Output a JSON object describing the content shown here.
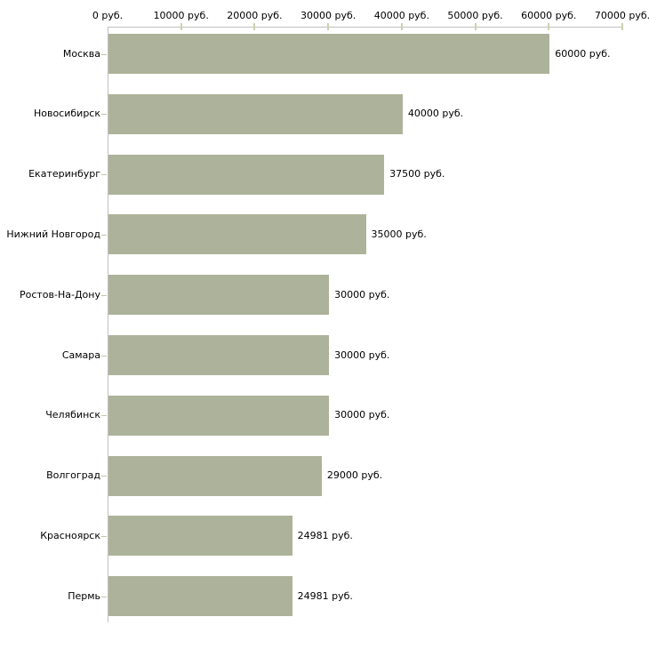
{
  "chart_data": {
    "type": "bar",
    "orientation": "horizontal",
    "title": "",
    "xlabel": "",
    "ylabel": "",
    "categories": [
      "Москва",
      "Новосибирск",
      "Екатеринбург",
      "Нижний Новгород",
      "Ростов-На-Дону",
      "Самара",
      "Челябинск",
      "Волгоград",
      "Красноярск",
      "Пермь"
    ],
    "values": [
      60000,
      40000,
      37500,
      35000,
      30000,
      30000,
      30000,
      29000,
      24981,
      24981
    ],
    "value_labels": [
      "60000 руб.",
      "40000 руб.",
      "37500 руб.",
      "35000 руб.",
      "30000 руб.",
      "30000 руб.",
      "30000 руб.",
      "29000 руб.",
      "24981 руб.",
      "24981 руб."
    ],
    "x_tick_values": [
      0,
      10000,
      20000,
      30000,
      40000,
      50000,
      60000,
      70000
    ],
    "x_tick_labels": [
      "0 руб.",
      "10000 руб.",
      "20000 руб.",
      "30000 руб.",
      "40000 руб.",
      "50000 руб.",
      "60000 руб.",
      "70000 руб."
    ],
    "xlim": [
      0,
      70000
    ],
    "x_axis_position": "top",
    "grid": false,
    "legend_position": "none",
    "colors": {
      "bar": "#adb39a",
      "axis_line": "#c0c0c0",
      "tick": "#cdd0ad",
      "category_tick": "#c3c3ab",
      "text": "#000000",
      "background": "#ffffff"
    }
  }
}
